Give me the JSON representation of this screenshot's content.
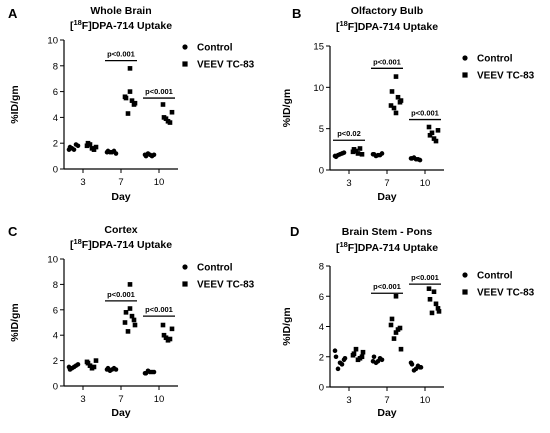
{
  "chart_data": [
    {
      "panel": "A",
      "type": "scatter",
      "title": "Whole Brain",
      "subtitle": "[18F]DPA-714 Uptake",
      "xlabel": "Day",
      "ylabel": "%ID/gm",
      "categories": [
        "3",
        "7",
        "10"
      ],
      "ylim": [
        0,
        10
      ],
      "yticks": [
        0,
        2,
        4,
        6,
        8,
        10
      ],
      "legend_position": "right",
      "series": [
        {
          "name": "Control",
          "marker": "circle",
          "values": [
            [
              1.5,
              1.7,
              1.8,
              1.6,
              1.9,
              1.5
            ],
            [
              1.3,
              1.4,
              1.2,
              1.3,
              1.4,
              1.3
            ],
            [
              1.1,
              1.0,
              1.1,
              1.2,
              1.0,
              1.1
            ]
          ]
        },
        {
          "name": "VEEV TC-83",
          "marker": "square",
          "values": [
            [
              1.6,
              2.0,
              1.7,
              1.9,
              1.5,
              1.8
            ],
            [
              7.8,
              5.5,
              5.0,
              4.3,
              5.3,
              5.6,
              5.1,
              6.0
            ],
            [
              3.7,
              4.0,
              4.4,
              3.9,
              3.6,
              5.0
            ]
          ]
        }
      ],
      "significance": [
        {
          "group": "7",
          "label": "p<0.001",
          "y": 8.4
        },
        {
          "group": "10",
          "label": "p<0.001",
          "y": 5.5
        }
      ]
    },
    {
      "panel": "B",
      "type": "scatter",
      "title": "Olfactory Bulb",
      "subtitle": "[18F]DPA-714 Uptake",
      "xlabel": "Day",
      "ylabel": "%ID/gm",
      "categories": [
        "3",
        "7",
        "10"
      ],
      "ylim": [
        0,
        15
      ],
      "yticks": [
        0,
        5,
        10,
        15
      ],
      "legend_position": "right",
      "series": [
        {
          "name": "Control",
          "marker": "circle",
          "values": [
            [
              1.9,
              1.6,
              2.1,
              1.8,
              2.0,
              1.7
            ],
            [
              1.8,
              1.9,
              2.0,
              1.7,
              1.8,
              1.9
            ],
            [
              1.3,
              1.4,
              1.2,
              1.5,
              1.3,
              1.4
            ]
          ]
        },
        {
          "name": "VEEV TC-83",
          "marker": "square",
          "values": [
            [
              2.0,
              2.5,
              1.9,
              2.3,
              2.6,
              2.2
            ],
            [
              11.3,
              9.5,
              8.2,
              7.5,
              8.8,
              7.8,
              8.4,
              6.9
            ],
            [
              3.8,
              4.2,
              4.8,
              4.5,
              3.5,
              5.2
            ]
          ]
        }
      ],
      "significance": [
        {
          "group": "3",
          "label": "p<0.02",
          "y": 3.6
        },
        {
          "group": "7",
          "label": "p<0.001",
          "y": 12.3
        },
        {
          "group": "10",
          "label": "p<0.001",
          "y": 6.1
        }
      ]
    },
    {
      "panel": "C",
      "type": "scatter",
      "title": "Cortex",
      "subtitle": "[18F]DPA-714 Uptake",
      "xlabel": "Day",
      "ylabel": "%ID/gm",
      "categories": [
        "3",
        "7",
        "10"
      ],
      "ylim": [
        0,
        10
      ],
      "yticks": [
        0,
        2,
        4,
        6,
        8,
        10
      ],
      "legend_position": "right",
      "series": [
        {
          "name": "Control",
          "marker": "circle",
          "values": [
            [
              1.5,
              1.3,
              1.7,
              1.4,
              1.6,
              1.5
            ],
            [
              1.3,
              1.4,
              1.3,
              1.2,
              1.4,
              1.3
            ],
            [
              1.1,
              1.0,
              1.1,
              1.2,
              1.1,
              1.0
            ]
          ]
        },
        {
          "name": "VEEV TC-83",
          "marker": "square",
          "values": [
            [
              1.4,
              1.8,
              2.0,
              1.6,
              1.5,
              1.9
            ],
            [
              8.0,
              5.8,
              5.2,
              4.3,
              5.5,
              5.0,
              4.8,
              6.1
            ],
            [
              3.6,
              4.0,
              4.5,
              3.8,
              3.7,
              4.8
            ]
          ]
        }
      ],
      "significance": [
        {
          "group": "7",
          "label": "p<0.001",
          "y": 6.7
        },
        {
          "group": "10",
          "label": "p<0.001",
          "y": 5.5
        }
      ]
    },
    {
      "panel": "D",
      "type": "scatter",
      "title": "Brain Stem - Pons",
      "subtitle": "[18F]DPA-714 Uptake",
      "xlabel": "Day",
      "ylabel": "%ID/gm",
      "categories": [
        "3",
        "7",
        "10"
      ],
      "ylim": [
        0,
        8
      ],
      "yticks": [
        0,
        2,
        4,
        6,
        8
      ],
      "legend_position": "right",
      "series": [
        {
          "name": "Control",
          "marker": "circle",
          "values": [
            [
              1.6,
              2.0,
              1.8,
              1.2,
              1.5,
              2.4,
              1.9
            ],
            [
              1.7,
              2.0,
              1.8,
              1.6,
              1.9,
              1.7
            ],
            [
              1.2,
              1.5,
              1.3,
              1.1,
              1.4,
              1.6,
              1.3
            ]
          ]
        },
        {
          "name": "VEEV TC-83",
          "marker": "square",
          "values": [
            [
              1.8,
              2.2,
              2.0,
              2.5,
              1.9,
              2.1,
              2.3
            ],
            [
              6.0,
              4.5,
              3.9,
              3.2,
              3.8,
              4.1,
              2.5,
              3.6
            ],
            [
              6.3,
              5.8,
              5.2,
              4.9,
              5.5,
              6.5,
              5.0
            ]
          ]
        }
      ],
      "significance": [
        {
          "group": "7",
          "label": "p<0.001",
          "y": 6.2
        },
        {
          "group": "10",
          "label": "p<0.001",
          "y": 6.8
        }
      ]
    }
  ]
}
